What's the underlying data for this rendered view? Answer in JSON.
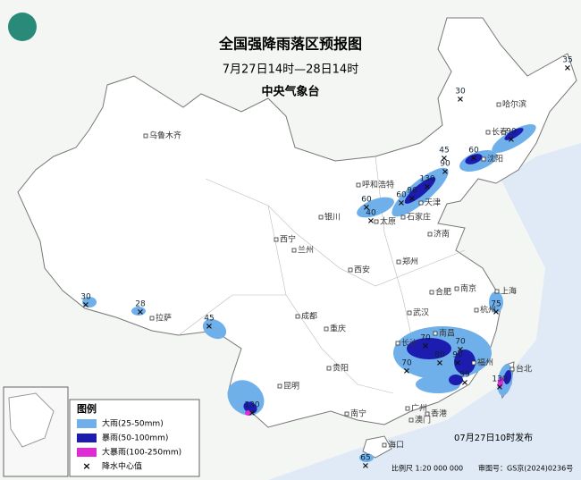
{
  "header": {
    "title": "全国强降雨落区预报图",
    "subtitle": "7月27日14时—28日14时",
    "issuer": "中央气象台"
  },
  "cities": [
    "哈尔滨",
    "长春",
    "沈阳",
    "乌鲁木齐",
    "呼和浩特",
    "银川",
    "太原",
    "石家庄",
    "天津",
    "西宁",
    "兰州",
    "济南",
    "郑州",
    "西安",
    "南京",
    "合肥",
    "上海",
    "拉萨",
    "成都",
    "武汉",
    "杭州",
    "重庆",
    "长沙",
    "南昌",
    "福州",
    "台北",
    "贵阳",
    "昆明",
    "南宁",
    "广州",
    "香港",
    "澳门",
    "海口"
  ],
  "rain_centers": [
    35,
    30,
    90,
    60,
    45,
    90,
    130,
    96,
    60,
    60,
    40,
    30,
    28,
    45,
    75,
    70,
    70,
    90,
    80,
    70,
    99,
    130,
    130,
    65
  ],
  "legend": {
    "title": "图例",
    "items": [
      {
        "label": "大雨(25-50mm)",
        "color": "#6fb0ea"
      },
      {
        "label": "暴雨(50-100mm)",
        "color": "#1c1cb0"
      },
      {
        "label": "大暴雨(100-250mm)",
        "color": "#e02ad6"
      },
      {
        "label": "降水中心值"
      }
    ]
  },
  "footer": {
    "published": "07月27日10时发布",
    "scale": "比例尺 1:20 000 000",
    "review": "审图号：GS京(2024)0236号"
  }
}
